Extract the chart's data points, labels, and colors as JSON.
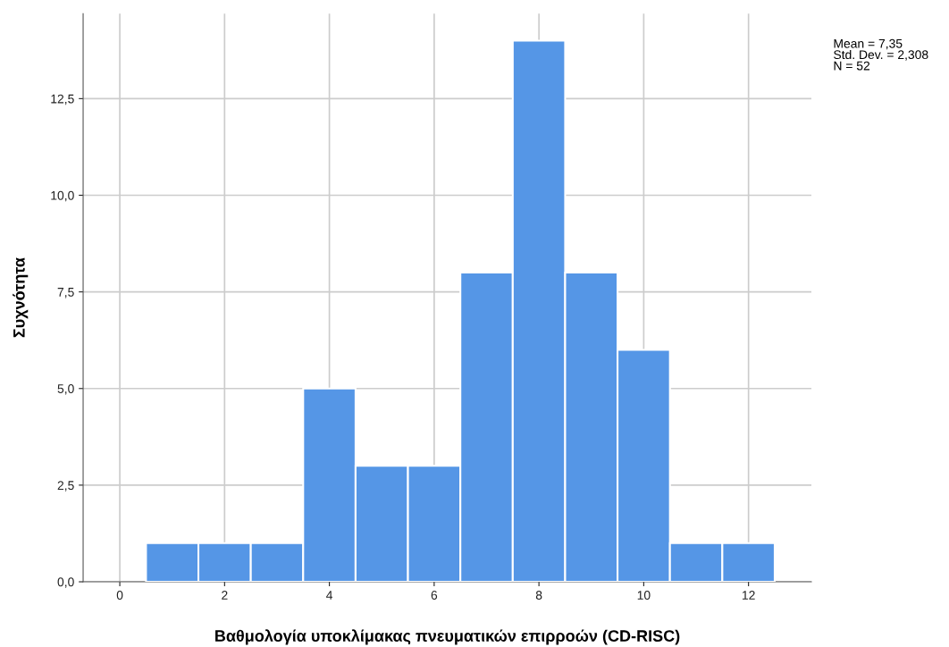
{
  "chart_data": {
    "type": "histogram",
    "xlabel": "Βαθμολογία υποκλίμακας πνευματικών επιρροών (CD-RISC)",
    "ylabel": "Συχνότητα",
    "bins": [
      0.5,
      1.5,
      2.5,
      3.5,
      4.5,
      5.5,
      6.5,
      7.5,
      8.5,
      9.5,
      10.5,
      11.5,
      12.5
    ],
    "values": [
      1,
      1,
      1,
      5,
      3,
      3,
      8,
      14,
      8,
      6,
      1,
      1
    ],
    "color": "#5596e6",
    "xlim": [
      -0.7,
      13.2
    ],
    "xticks": [
      0,
      2,
      4,
      6,
      8,
      10,
      12
    ],
    "ylim": [
      0,
      14.7
    ],
    "yticks": [
      {
        "value": 0,
        "label": "0,0"
      },
      {
        "value": 2.5,
        "label": "2,5"
      },
      {
        "value": 5,
        "label": "5,0"
      },
      {
        "value": 7.5,
        "label": "7,5"
      },
      {
        "value": 10,
        "label": "10,0"
      },
      {
        "value": 12.5,
        "label": "12,5"
      }
    ],
    "grid": true,
    "annotations": [
      "Mean = 7,35\nStd. Dev. = 2,308\nN = 52"
    ]
  }
}
